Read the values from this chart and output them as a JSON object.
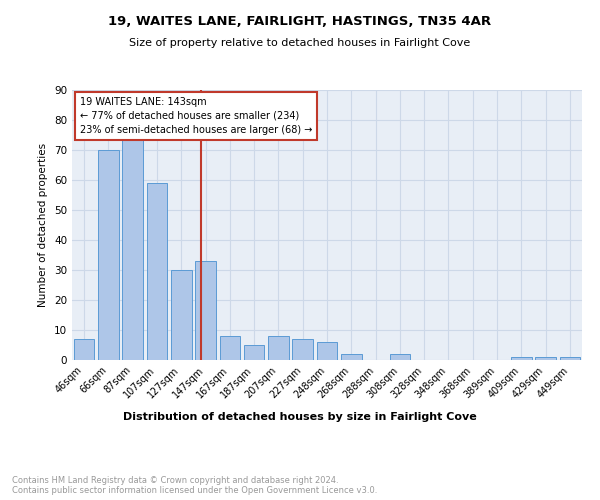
{
  "title1": "19, WAITES LANE, FAIRLIGHT, HASTINGS, TN35 4AR",
  "title2": "Size of property relative to detached houses in Fairlight Cove",
  "xlabel": "Distribution of detached houses by size in Fairlight Cove",
  "ylabel": "Number of detached properties",
  "categories": [
    "46sqm",
    "66sqm",
    "87sqm",
    "107sqm",
    "127sqm",
    "147sqm",
    "167sqm",
    "187sqm",
    "207sqm",
    "227sqm",
    "248sqm",
    "268sqm",
    "288sqm",
    "308sqm",
    "328sqm",
    "348sqm",
    "368sqm",
    "389sqm",
    "409sqm",
    "429sqm",
    "449sqm"
  ],
  "values": [
    7,
    70,
    75,
    59,
    30,
    33,
    8,
    5,
    8,
    7,
    6,
    2,
    0,
    2,
    0,
    0,
    0,
    0,
    1,
    1,
    1
  ],
  "bar_color": "#aec6e8",
  "bar_edge_color": "#5b9bd5",
  "annotation_line1": "19 WAITES LANE: 143sqm",
  "annotation_line2": "← 77% of detached houses are smaller (234)",
  "annotation_line3": "23% of semi-detached houses are larger (68) →",
  "vline_color": "#c0392b",
  "annotation_box_color": "#c0392b",
  "annotation_bg": "#ffffff",
  "ylim": [
    0,
    90
  ],
  "yticks": [
    0,
    10,
    20,
    30,
    40,
    50,
    60,
    70,
    80,
    90
  ],
  "grid_color": "#cdd8e8",
  "bg_color": "#e8eef6",
  "title1_fontsize": 9.5,
  "title2_fontsize": 8.0,
  "footnote": "Contains HM Land Registry data © Crown copyright and database right 2024.\nContains public sector information licensed under the Open Government Licence v3.0.",
  "footnote_color": "#999999"
}
